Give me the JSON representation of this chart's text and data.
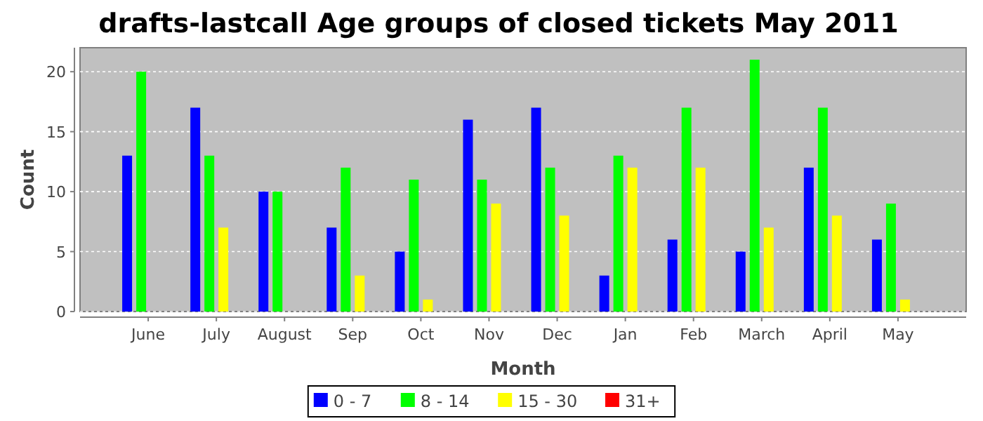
{
  "chart_data": {
    "type": "bar",
    "title": "drafts-lastcall Age groups of closed tickets May 2011",
    "xlabel": "Month",
    "ylabel": "Count",
    "categories": [
      "June",
      "July",
      "August",
      "Sep",
      "Oct",
      "Nov",
      "Dec",
      "Jan",
      "Feb",
      "March",
      "April",
      "May"
    ],
    "series": [
      {
        "name": "0 - 7",
        "color": "#0000ff",
        "values": [
          13,
          17,
          10,
          7,
          5,
          16,
          17,
          3,
          6,
          5,
          12,
          6
        ]
      },
      {
        "name": "8 - 14",
        "color": "#00ff00",
        "values": [
          20,
          13,
          10,
          12,
          11,
          11,
          12,
          13,
          17,
          21,
          17,
          9
        ]
      },
      {
        "name": "15 - 30",
        "color": "#ffff00",
        "values": [
          0,
          7,
          0,
          3,
          1,
          9,
          8,
          12,
          12,
          7,
          8,
          1
        ]
      },
      {
        "name": "31+",
        "color": "#ff0000",
        "values": [
          0,
          0,
          0,
          0,
          0,
          0,
          0,
          0,
          0,
          0,
          0,
          0
        ]
      }
    ],
    "ylim": [
      0,
      22
    ],
    "yticks": [
      0,
      5,
      10,
      15,
      20
    ],
    "grid": "y",
    "legend": "bottom"
  }
}
